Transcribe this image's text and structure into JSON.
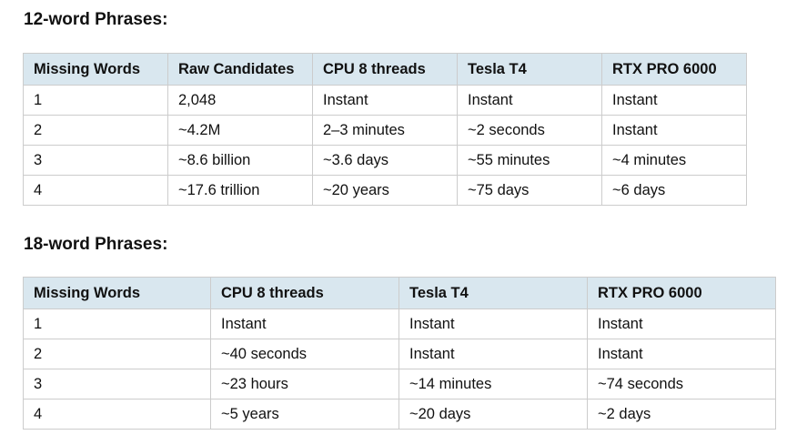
{
  "section_12": {
    "title": "12-word Phrases:",
    "headers": [
      "Missing Words",
      "Raw Candidates",
      "CPU 8 threads",
      "Tesla T4",
      "RTX PRO 6000"
    ],
    "rows": [
      [
        "1",
        "2,048",
        "Instant",
        "Instant",
        "Instant"
      ],
      [
        "2",
        "~4.2M",
        "2–3 minutes",
        "~2 seconds",
        "Instant"
      ],
      [
        "3",
        "~8.6 billion",
        "~3.6 days",
        "~55 minutes",
        "~4 minutes"
      ],
      [
        "4",
        "~17.6 trillion",
        "~20 years",
        "~75 days",
        "~6 days"
      ]
    ]
  },
  "section_18": {
    "title": "18-word Phrases:",
    "headers": [
      "Missing Words",
      "CPU 8 threads",
      "Tesla T4",
      "RTX PRO 6000"
    ],
    "rows": [
      [
        "1",
        "Instant",
        "Instant",
        "Instant"
      ],
      [
        "2",
        "~40 seconds",
        "Instant",
        "Instant"
      ],
      [
        "3",
        "~23 hours",
        "~14 minutes",
        "~74 seconds"
      ],
      [
        "4",
        "~5 years",
        "~20 days",
        "~2 days"
      ]
    ]
  },
  "colors": {
    "header_background": "#d9e7ef",
    "border": "#cccccc",
    "text": "#111111"
  }
}
